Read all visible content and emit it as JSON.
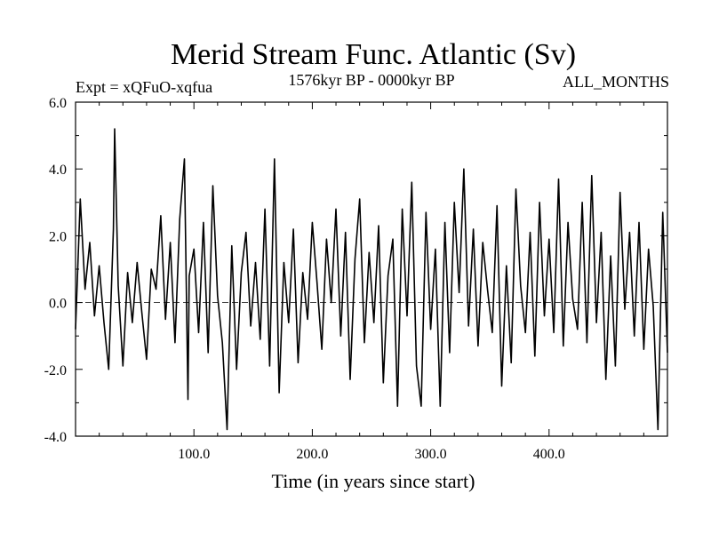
{
  "chart_data": {
    "type": "line",
    "title": "Merid Stream Func. Atlantic (Sv)",
    "expt_label": "Expt = xQFuO-xqfua",
    "period_label": "1576kyr BP - 0000kyr BP",
    "months_label": "ALL_MONTHS",
    "xlabel": "Time (in years since start)",
    "ylabel": "",
    "xlim": [
      0,
      500
    ],
    "ylim": [
      -4.0,
      6.0
    ],
    "x_ticks": [
      100,
      200,
      300,
      400
    ],
    "x_tick_labels": [
      "100.0",
      "200.0",
      "300.0",
      "400.0"
    ],
    "y_ticks": [
      -4,
      -2,
      0,
      2,
      4,
      6
    ],
    "y_tick_labels": [
      "-4.0",
      "-2.0",
      "0.0",
      "2.0",
      "4.0",
      "6.0"
    ],
    "zero_line": true,
    "grid": false,
    "series": [
      {
        "x": [
          0,
          4,
          8,
          12,
          16,
          20,
          24,
          28,
          32,
          33,
          36,
          40,
          44,
          48,
          52,
          56,
          60,
          64,
          68,
          72,
          76,
          80,
          84,
          88,
          92,
          95,
          96,
          100,
          104,
          108,
          112,
          116,
          120,
          124,
          128,
          132,
          136,
          140,
          144,
          148,
          152,
          156,
          160,
          164,
          168,
          172,
          176,
          180,
          184,
          188,
          192,
          196,
          200,
          204,
          208,
          212,
          216,
          220,
          224,
          228,
          232,
          236,
          240,
          244,
          248,
          252,
          256,
          260,
          264,
          268,
          272,
          276,
          280,
          284,
          288,
          292,
          296,
          300,
          304,
          308,
          312,
          316,
          320,
          324,
          328,
          332,
          336,
          340,
          344,
          348,
          352,
          356,
          360,
          364,
          368,
          372,
          376,
          380,
          384,
          388,
          392,
          396,
          400,
          404,
          408,
          412,
          416,
          420,
          424,
          428,
          432,
          436,
          440,
          444,
          448,
          452,
          456,
          460,
          464,
          468,
          472,
          476,
          480,
          484,
          488,
          492,
          496,
          500
        ],
        "y": [
          -0.8,
          3.1,
          0.4,
          1.8,
          -0.4,
          1.1,
          -0.6,
          -2.0,
          2.2,
          5.2,
          0.5,
          -1.9,
          0.9,
          -0.6,
          1.2,
          -0.3,
          -1.7,
          1.0,
          0.4,
          2.6,
          -0.5,
          1.8,
          -1.2,
          2.5,
          4.3,
          -2.9,
          0.8,
          1.6,
          -0.9,
          2.4,
          -1.5,
          3.5,
          0.2,
          -1.2,
          -3.8,
          1.7,
          -2.0,
          0.9,
          2.1,
          -0.7,
          1.2,
          -1.1,
          2.8,
          -1.9,
          4.3,
          -2.7,
          1.2,
          -0.6,
          2.2,
          -1.8,
          0.9,
          -0.5,
          2.4,
          0.6,
          -1.4,
          1.9,
          0.0,
          2.8,
          -1.0,
          2.1,
          -2.3,
          1.3,
          3.1,
          -1.2,
          1.5,
          -0.6,
          2.3,
          -2.4,
          0.8,
          1.9,
          -3.1,
          2.8,
          -0.4,
          3.6,
          -1.9,
          -3.1,
          2.7,
          -0.8,
          1.6,
          -3.1,
          2.4,
          -1.5,
          3.0,
          0.3,
          4.0,
          -0.7,
          2.2,
          -1.3,
          1.8,
          0.4,
          -0.9,
          2.9,
          -2.5,
          1.1,
          -1.8,
          3.4,
          0.5,
          -0.9,
          2.1,
          -1.6,
          3.0,
          -0.4,
          1.9,
          -0.9,
          3.7,
          -1.3,
          2.4,
          0.1,
          -0.8,
          3.0,
          -1.2,
          3.8,
          -0.6,
          2.1,
          -2.3,
          1.4,
          -1.9,
          3.3,
          -0.2,
          2.1,
          -1.0,
          2.4,
          -1.4,
          1.6,
          -0.1,
          -3.8,
          2.7,
          -1.5
        ]
      }
    ]
  }
}
